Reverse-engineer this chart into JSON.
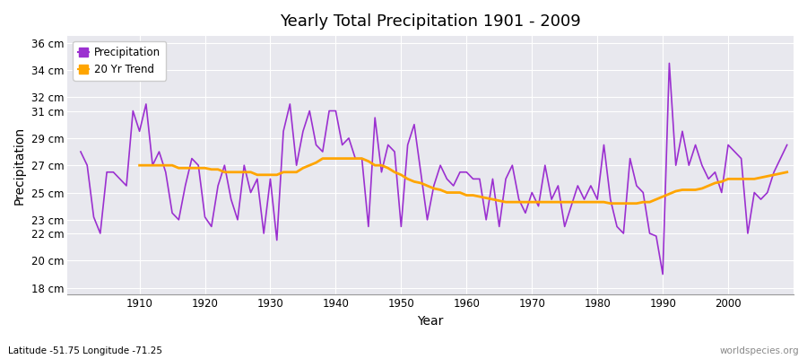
{
  "title": "Yearly Total Precipitation 1901 - 2009",
  "xlabel": "Year",
  "ylabel": "Precipitation",
  "subtitle": "Latitude -51.75 Longitude -71.25",
  "watermark": "worldspecies.org",
  "precip_color": "#9B30D0",
  "trend_color": "#FFA500",
  "bg_color": "#E8E8EE",
  "fig_bg_color": "#FFFFFF",
  "ylim": [
    17.5,
    36.5
  ],
  "yticks": [
    18,
    20,
    22,
    23,
    25,
    27,
    29,
    31,
    32,
    34,
    36
  ],
  "ytick_labels": [
    "18 cm",
    "20 cm",
    "22 cm",
    "23 cm",
    "25 cm",
    "27 cm",
    "29 cm",
    "31 cm",
    "32 cm",
    "34 cm",
    "36 cm"
  ],
  "xlim": [
    1899,
    2010
  ],
  "xticks": [
    1910,
    1920,
    1930,
    1940,
    1950,
    1960,
    1970,
    1980,
    1990,
    2000
  ],
  "years": [
    1901,
    1902,
    1903,
    1904,
    1905,
    1906,
    1907,
    1908,
    1909,
    1910,
    1911,
    1912,
    1913,
    1914,
    1915,
    1916,
    1917,
    1918,
    1919,
    1920,
    1921,
    1922,
    1923,
    1924,
    1925,
    1926,
    1927,
    1928,
    1929,
    1930,
    1931,
    1932,
    1933,
    1934,
    1935,
    1936,
    1937,
    1938,
    1939,
    1940,
    1941,
    1942,
    1943,
    1944,
    1945,
    1946,
    1947,
    1948,
    1949,
    1950,
    1951,
    1952,
    1953,
    1954,
    1955,
    1956,
    1957,
    1958,
    1959,
    1960,
    1961,
    1962,
    1963,
    1964,
    1965,
    1966,
    1967,
    1968,
    1969,
    1970,
    1971,
    1972,
    1973,
    1974,
    1975,
    1976,
    1977,
    1978,
    1979,
    1980,
    1981,
    1982,
    1983,
    1984,
    1985,
    1986,
    1987,
    1988,
    1989,
    1990,
    1991,
    1992,
    1993,
    1994,
    1995,
    1996,
    1997,
    1998,
    1999,
    2000,
    2001,
    2002,
    2003,
    2004,
    2005,
    2006,
    2007,
    2008,
    2009
  ],
  "precip": [
    28.0,
    27.0,
    23.2,
    22.0,
    26.5,
    26.5,
    26.0,
    25.5,
    31.0,
    29.5,
    31.5,
    27.0,
    28.0,
    26.5,
    23.5,
    23.0,
    25.5,
    27.5,
    27.0,
    23.2,
    22.5,
    25.5,
    27.0,
    24.5,
    23.0,
    27.0,
    25.0,
    26.0,
    22.0,
    26.0,
    21.5,
    29.5,
    31.5,
    27.0,
    29.5,
    31.0,
    28.5,
    28.0,
    31.0,
    31.0,
    28.5,
    29.0,
    27.5,
    27.5,
    22.5,
    30.5,
    26.5,
    28.5,
    28.0,
    22.5,
    28.5,
    30.0,
    26.5,
    23.0,
    25.5,
    27.0,
    26.0,
    25.5,
    26.5,
    26.5,
    26.0,
    26.0,
    23.0,
    26.0,
    22.5,
    26.0,
    27.0,
    24.5,
    23.5,
    25.0,
    24.0,
    27.0,
    24.5,
    25.5,
    22.5,
    24.0,
    25.5,
    24.5,
    25.5,
    24.5,
    28.5,
    24.5,
    22.5,
    22.0,
    27.5,
    25.5,
    25.0,
    22.0,
    21.8,
    19.0,
    34.5,
    27.0,
    29.5,
    27.0,
    28.5,
    27.0,
    26.0,
    26.5,
    25.0,
    28.5,
    28.0,
    27.5,
    22.0,
    25.0,
    24.5,
    25.0,
    26.5,
    27.5,
    28.5
  ],
  "trend_years": [
    1910,
    1911,
    1912,
    1913,
    1914,
    1915,
    1916,
    1917,
    1918,
    1919,
    1920,
    1921,
    1922,
    1923,
    1924,
    1925,
    1926,
    1927,
    1928,
    1929,
    1930,
    1931,
    1932,
    1933,
    1934,
    1935,
    1936,
    1937,
    1938,
    1939,
    1940,
    1941,
    1942,
    1943,
    1944,
    1945,
    1946,
    1947,
    1948,
    1949,
    1950,
    1951,
    1952,
    1953,
    1954,
    1955,
    1956,
    1957,
    1958,
    1959,
    1960,
    1961,
    1962,
    1963,
    1964,
    1965,
    1966,
    1967,
    1968,
    1969,
    1970,
    1971,
    1972,
    1973,
    1974,
    1975,
    1976,
    1977,
    1978,
    1979,
    1980,
    1981,
    1982,
    1983,
    1984,
    1985,
    1986,
    1987,
    1988,
    1989,
    1990,
    1991,
    1992,
    1993,
    1994,
    1995,
    1996,
    1997,
    1998,
    1999,
    2000,
    2001,
    2002,
    2003,
    2004,
    2005,
    2006,
    2007,
    2008,
    2009
  ],
  "trend": [
    27.0,
    27.0,
    27.0,
    27.0,
    27.0,
    27.0,
    26.8,
    26.8,
    26.8,
    26.8,
    26.8,
    26.7,
    26.7,
    26.5,
    26.5,
    26.5,
    26.5,
    26.5,
    26.3,
    26.3,
    26.3,
    26.3,
    26.5,
    26.5,
    26.5,
    26.8,
    27.0,
    27.2,
    27.5,
    27.5,
    27.5,
    27.5,
    27.5,
    27.5,
    27.5,
    27.3,
    27.0,
    27.0,
    26.8,
    26.5,
    26.3,
    26.0,
    25.8,
    25.7,
    25.5,
    25.3,
    25.2,
    25.0,
    25.0,
    25.0,
    24.8,
    24.8,
    24.7,
    24.6,
    24.5,
    24.4,
    24.3,
    24.3,
    24.3,
    24.3,
    24.3,
    24.3,
    24.3,
    24.3,
    24.3,
    24.3,
    24.3,
    24.3,
    24.3,
    24.3,
    24.3,
    24.3,
    24.2,
    24.2,
    24.2,
    24.2,
    24.2,
    24.3,
    24.3,
    24.5,
    24.7,
    24.9,
    25.1,
    25.2,
    25.2,
    25.2,
    25.3,
    25.5,
    25.7,
    25.8,
    26.0,
    26.0,
    26.0,
    26.0,
    26.0,
    26.1,
    26.2,
    26.3,
    26.4,
    26.5
  ]
}
